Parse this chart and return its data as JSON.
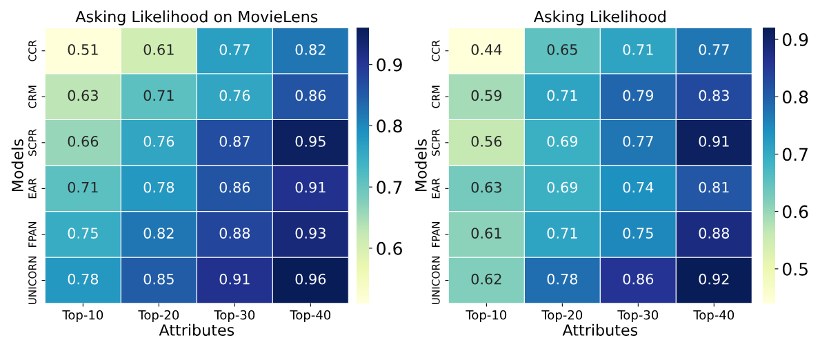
{
  "chart_data": [
    {
      "type": "heatmap",
      "title": "Asking Likelihood on MovieLens",
      "xlabel": "Attributes",
      "ylabel": "Models",
      "categories": [
        "Top-10",
        "Top-20",
        "Top-30",
        "Top-40"
      ],
      "y_categories": [
        "CCR",
        "CRM",
        "SCPR",
        "EAR",
        "FPAN",
        "UNICORN"
      ],
      "cells": [
        [
          0.51,
          0.61,
          0.77,
          0.82
        ],
        [
          0.63,
          0.71,
          0.76,
          0.86
        ],
        [
          0.66,
          0.76,
          0.87,
          0.95
        ],
        [
          0.71,
          0.78,
          0.86,
          0.91
        ],
        [
          0.75,
          0.82,
          0.88,
          0.93
        ],
        [
          0.78,
          0.85,
          0.91,
          0.96
        ]
      ],
      "clim": [
        0.51,
        0.96
      ],
      "cticks": [
        0.6,
        0.7,
        0.8,
        0.9
      ],
      "data_labels": true
    },
    {
      "type": "heatmap",
      "title": "Asking Likelihood",
      "xlabel": "Attributes",
      "ylabel": "Models",
      "categories": [
        "Top-10",
        "Top-20",
        "Top-30",
        "Top-40"
      ],
      "y_categories": [
        "CCR",
        "CRM",
        "SCPR",
        "EAR",
        "FPAN",
        "UNICORN"
      ],
      "cells": [
        [
          0.44,
          0.65,
          0.71,
          0.77
        ],
        [
          0.59,
          0.71,
          0.79,
          0.83
        ],
        [
          0.56,
          0.69,
          0.77,
          0.91
        ],
        [
          0.63,
          0.69,
          0.74,
          0.81
        ],
        [
          0.61,
          0.71,
          0.75,
          0.88
        ],
        [
          0.62,
          0.78,
          0.86,
          0.92
        ]
      ],
      "clim": [
        0.44,
        0.92
      ],
      "cticks": [
        0.5,
        0.6,
        0.7,
        0.8,
        0.9
      ],
      "data_labels": true
    }
  ]
}
